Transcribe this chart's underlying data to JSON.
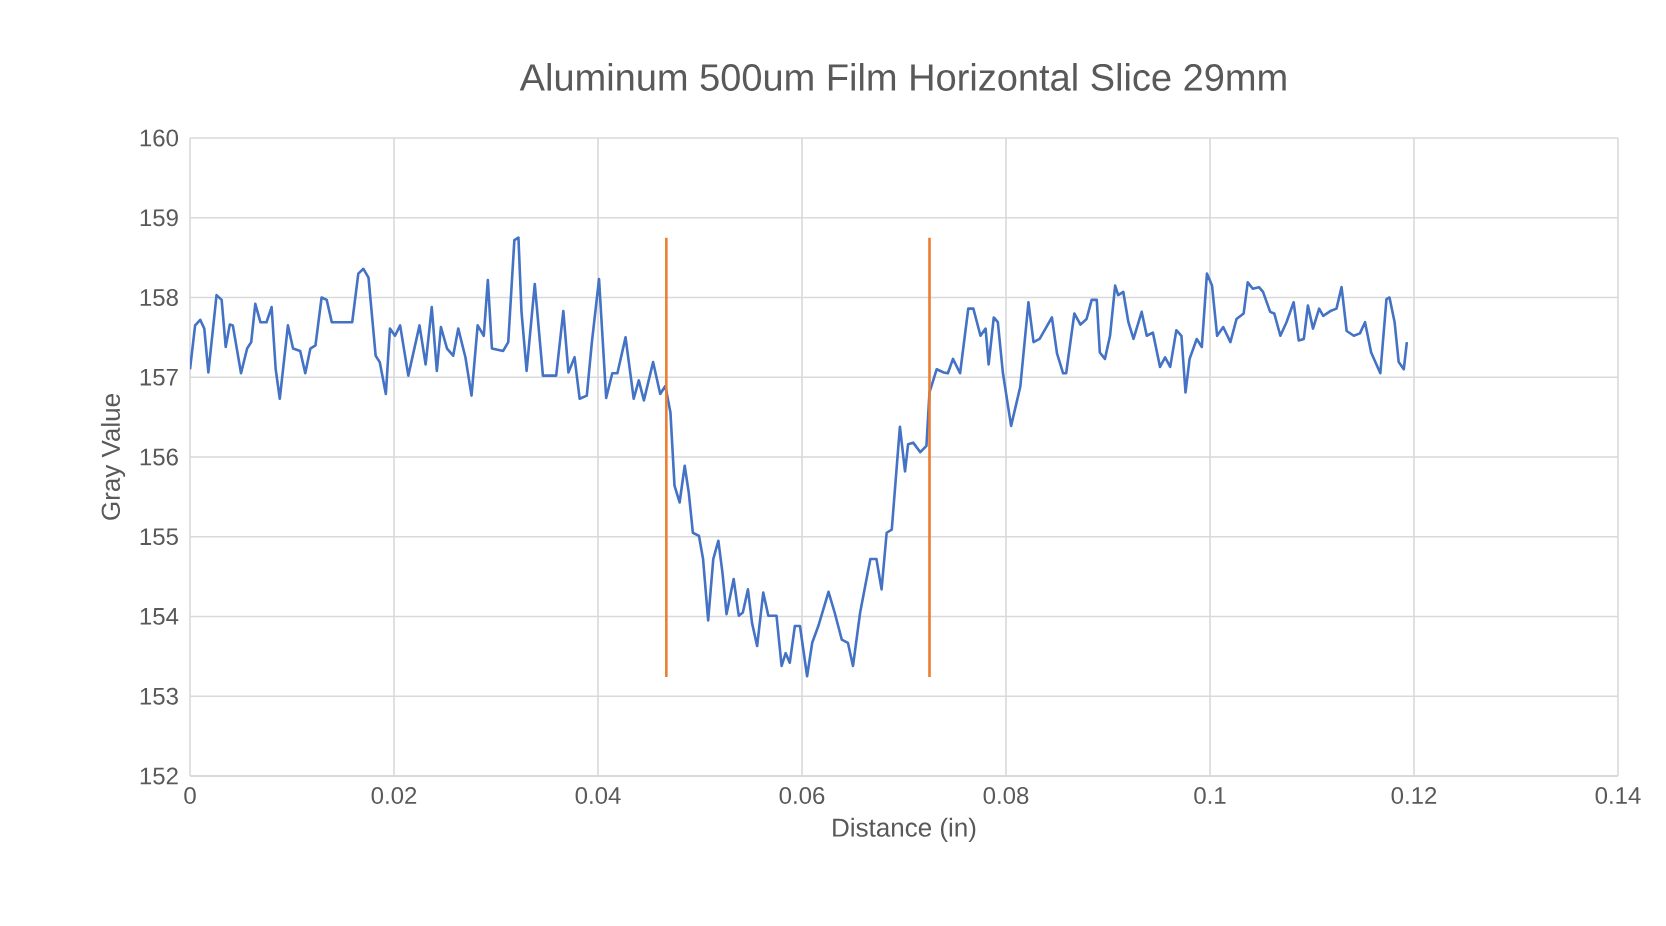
{
  "chart_data": {
    "type": "line",
    "title": "Aluminum 500um Film Horizontal Slice 29mm",
    "xlabel": "Distance (in)",
    "ylabel": "Gray Value",
    "xlim": [
      0,
      0.14
    ],
    "xticks": [
      0,
      0.02,
      0.04,
      0.06,
      0.08,
      0.1,
      0.12,
      0.14
    ],
    "ylim": [
      152,
      160
    ],
    "yticks": [
      152,
      153,
      154,
      155,
      156,
      157,
      158,
      159,
      160
    ],
    "grid": true,
    "series": [
      {
        "color": "#4472c4",
        "x": [
          0.0,
          0.0005,
          0.001,
          0.0014,
          0.0018,
          0.0026,
          0.0031,
          0.0035,
          0.0039,
          0.0042,
          0.005,
          0.0056,
          0.006,
          0.0064,
          0.0069,
          0.0075,
          0.008,
          0.0084,
          0.0088,
          0.0096,
          0.0101,
          0.0108,
          0.0113,
          0.0118,
          0.0123,
          0.0129,
          0.0134,
          0.0139,
          0.0159,
          0.0165,
          0.017,
          0.0175,
          0.0182,
          0.0186,
          0.0192,
          0.0196,
          0.0201,
          0.0206,
          0.0214,
          0.0225,
          0.0231,
          0.0237,
          0.0242,
          0.0246,
          0.0252,
          0.0258,
          0.0263,
          0.027,
          0.0276,
          0.0282,
          0.0288,
          0.0292,
          0.0296,
          0.0307,
          0.0312,
          0.0318,
          0.0322,
          0.0325,
          0.033,
          0.0338,
          0.0346,
          0.0359,
          0.0366,
          0.0371,
          0.0377,
          0.0382,
          0.0389,
          0.0394,
          0.0401,
          0.0408,
          0.0414,
          0.0419,
          0.0427,
          0.0435,
          0.044,
          0.0445,
          0.0454,
          0.0461,
          0.0466,
          0.0471,
          0.0475,
          0.048,
          0.0485,
          0.0489,
          0.0493,
          0.0499,
          0.0503,
          0.0508,
          0.0513,
          0.0518,
          0.0522,
          0.0526,
          0.0533,
          0.0538,
          0.0542,
          0.0547,
          0.0551,
          0.0556,
          0.0562,
          0.0567,
          0.0575,
          0.058,
          0.0584,
          0.0588,
          0.0593,
          0.0598,
          0.0605,
          0.061,
          0.0616,
          0.0626,
          0.0632,
          0.0639,
          0.0645,
          0.065,
          0.0657,
          0.0667,
          0.0673,
          0.0678,
          0.0683,
          0.0688,
          0.0696,
          0.0701,
          0.0704,
          0.0709,
          0.0716,
          0.0722,
          0.0725,
          0.0732,
          0.0739,
          0.0743,
          0.0748,
          0.0755,
          0.0763,
          0.0768,
          0.0775,
          0.078,
          0.0783,
          0.0788,
          0.0792,
          0.0797,
          0.0805,
          0.0814,
          0.0822,
          0.0827,
          0.0833,
          0.0845,
          0.085,
          0.0856,
          0.0859,
          0.0867,
          0.0873,
          0.0879,
          0.0884,
          0.0889,
          0.0892,
          0.0897,
          0.0902,
          0.0907,
          0.091,
          0.0915,
          0.092,
          0.0925,
          0.0933,
          0.0938,
          0.0944,
          0.0951,
          0.0956,
          0.0961,
          0.0967,
          0.0972,
          0.0976,
          0.098,
          0.0987,
          0.0992,
          0.0997,
          0.1002,
          0.1007,
          0.1013,
          0.102,
          0.1026,
          0.1033,
          0.1037,
          0.1042,
          0.1048,
          0.1052,
          0.1059,
          0.1063,
          0.1069,
          0.1075,
          0.1082,
          0.1087,
          0.1092,
          0.1096,
          0.1101,
          0.1107,
          0.1111,
          0.1118,
          0.1124,
          0.1129,
          0.1134,
          0.1141,
          0.1147,
          0.1152,
          0.1158,
          0.1167,
          0.1173,
          0.1176,
          0.1181,
          0.1185,
          0.119,
          0.1193
        ],
        "values": [
          157.1,
          157.65,
          157.72,
          157.61,
          157.06,
          158.03,
          157.97,
          157.38,
          157.66,
          157.65,
          157.05,
          157.36,
          157.44,
          157.92,
          157.69,
          157.69,
          157.88,
          157.1,
          156.73,
          157.65,
          157.36,
          157.33,
          157.05,
          157.36,
          157.4,
          158.0,
          157.97,
          157.69,
          157.69,
          158.3,
          158.36,
          158.25,
          157.27,
          157.19,
          156.79,
          157.61,
          157.52,
          157.65,
          157.02,
          157.65,
          157.16,
          157.88,
          157.08,
          157.63,
          157.36,
          157.27,
          157.61,
          157.25,
          156.77,
          157.65,
          157.52,
          158.22,
          157.36,
          157.33,
          157.44,
          158.72,
          158.75,
          157.82,
          157.08,
          158.17,
          157.02,
          157.02,
          157.83,
          157.06,
          157.25,
          156.73,
          156.77,
          157.44,
          158.23,
          156.74,
          157.05,
          157.05,
          157.5,
          156.73,
          156.96,
          156.71,
          157.19,
          156.79,
          156.89,
          156.56,
          155.64,
          155.43,
          155.89,
          155.55,
          155.05,
          155.01,
          154.72,
          153.95,
          154.72,
          154.95,
          154.55,
          154.03,
          154.47,
          154.01,
          154.05,
          154.34,
          153.92,
          153.63,
          154.3,
          154.01,
          154.01,
          153.38,
          153.54,
          153.42,
          153.88,
          153.88,
          153.25,
          153.67,
          153.88,
          154.31,
          154.05,
          153.71,
          153.67,
          153.38,
          154.05,
          154.72,
          154.72,
          154.34,
          155.05,
          155.09,
          156.38,
          155.82,
          156.16,
          156.18,
          156.06,
          156.14,
          156.81,
          157.1,
          157.06,
          157.05,
          157.23,
          157.05,
          157.86,
          157.86,
          157.52,
          157.61,
          157.16,
          157.75,
          157.69,
          157.05,
          156.39,
          156.88,
          157.94,
          157.44,
          157.48,
          157.75,
          157.3,
          157.05,
          157.05,
          157.8,
          157.66,
          157.73,
          157.97,
          157.97,
          157.31,
          157.23,
          157.52,
          158.15,
          158.03,
          158.07,
          157.69,
          157.48,
          157.82,
          157.52,
          157.56,
          157.13,
          157.25,
          157.13,
          157.59,
          157.52,
          156.81,
          157.23,
          157.48,
          157.38,
          158.3,
          158.15,
          157.52,
          157.63,
          157.44,
          157.73,
          157.8,
          158.19,
          158.11,
          158.13,
          158.07,
          157.82,
          157.8,
          157.52,
          157.69,
          157.94,
          157.46,
          157.48,
          157.9,
          157.61,
          157.86,
          157.77,
          157.83,
          157.86,
          158.13,
          157.58,
          157.52,
          157.55,
          157.69,
          157.31,
          157.05,
          157.98,
          158.0,
          157.69,
          157.19,
          157.1,
          157.44
        ]
      },
      {
        "color": "#ed7d31",
        "x": [
          0.0467,
          0.0467
        ],
        "values": [
          153.24,
          158.75
        ]
      },
      {
        "color": "#ed7d31",
        "x": [
          0.0725,
          0.0725
        ],
        "values": [
          153.24,
          158.75
        ]
      }
    ]
  }
}
